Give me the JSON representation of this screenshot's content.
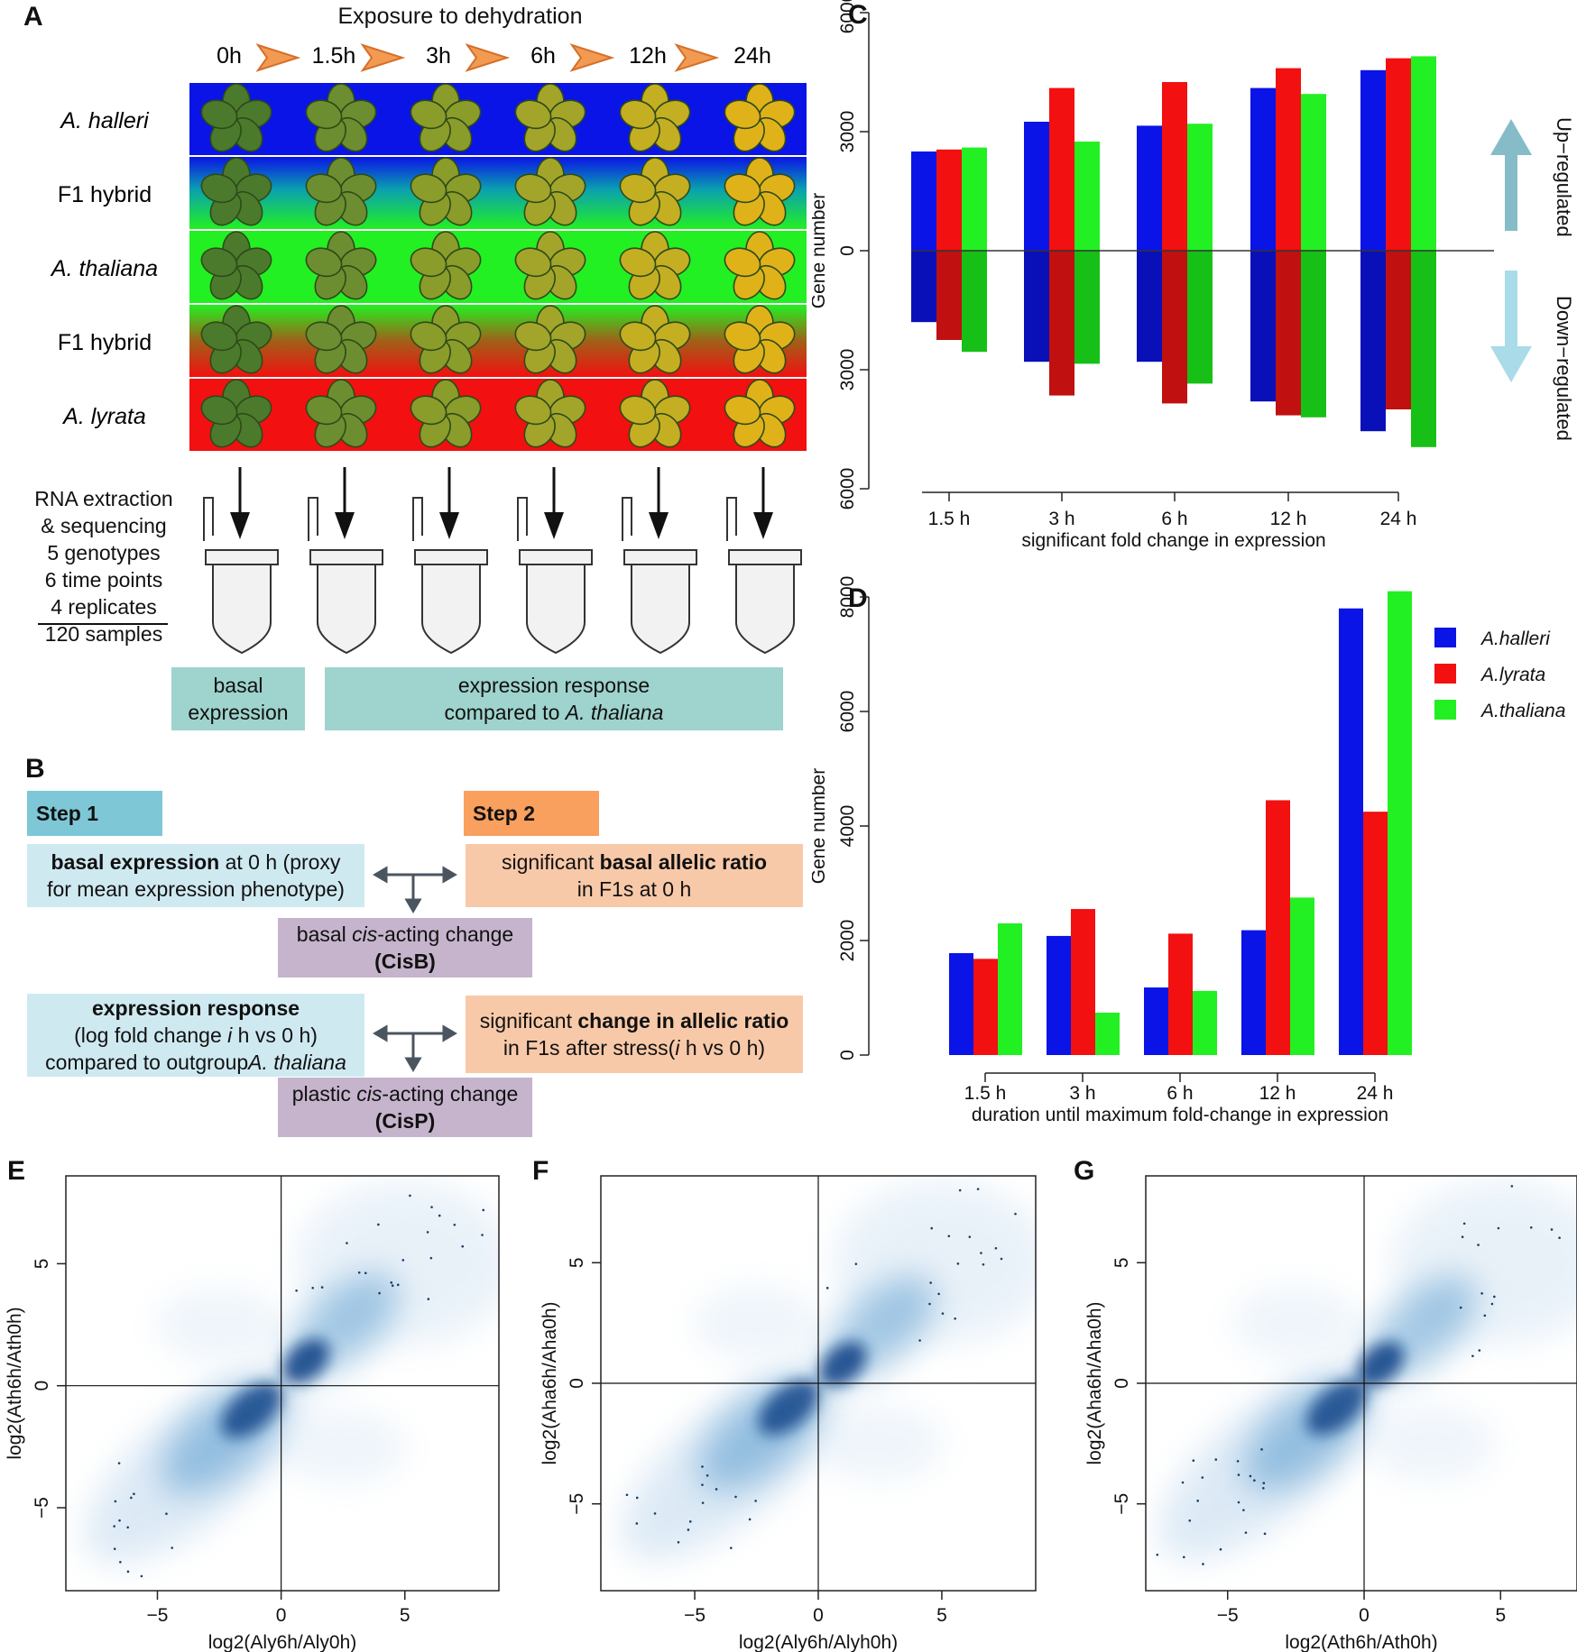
{
  "panels": {
    "A": {
      "label": "A",
      "title": "Exposure to dehydration",
      "times": [
        "0h",
        "1.5h",
        "3h",
        "6h",
        "12h",
        "24h"
      ],
      "rows": [
        "A. halleri",
        "F1 hybrid",
        "A. thaliana",
        "F1 hybrid",
        "A. lyrata"
      ],
      "rows_italic": [
        true,
        false,
        true,
        false,
        true
      ],
      "row_colors": {
        "halleri": "#0a14e6",
        "thaliana": "#22f022",
        "lyrata": "#f21010"
      },
      "leaf_colors": [
        "#4b7a2c",
        "#6d8e30",
        "#8a9c2a",
        "#a3a52a",
        "#c4ae22",
        "#e0b21a"
      ],
      "sample_text": [
        "RNA extraction",
        "& sequencing",
        "5 genotypes",
        "6 time points",
        "4 replicates",
        "120 samples"
      ],
      "basal_box": [
        "basal",
        "expression"
      ],
      "response_box_line1": "expression response",
      "response_box_line2_prefix": "compared to ",
      "response_box_line2_italic": "A. thaliana"
    },
    "B": {
      "label": "B",
      "step1": "Step 1",
      "step2": "Step 2",
      "basal_expr_bold": "basal expression",
      "basal_expr_rest": " at 0 h (proxy",
      "basal_expr_line2": "for mean expression phenotype)",
      "sig_basal_prefix": "significant ",
      "sig_basal_bold": "basal allelic ratio",
      "sig_basal_line2": "in F1s at 0 h",
      "cisb_prefix": "basal ",
      "cisb_italic": "cis",
      "cisb_suffix": "-acting change",
      "cisb_code": "(CisB)",
      "resp_bold": "expression response",
      "resp_line2_a": "(log fold change ",
      "resp_line2_i": "i",
      "resp_line2_b": " h vs 0 h)",
      "resp_line3_a": "compared to outgroup",
      "resp_line3_i": "A. thaliana",
      "sig_change_prefix": "significant ",
      "sig_change_bold": "change in allelic ratio",
      "sig_change_line2_a": "in F1s after stress(",
      "sig_change_line2_i": "i",
      "sig_change_line2_b": " h vs 0 h)",
      "cisp_prefix": "plastic ",
      "cisp_italic": "cis",
      "cisp_suffix": "-acting change",
      "cisp_code": "CisP"
    },
    "C": {
      "label": "C",
      "up_label": "Up−regulated",
      "down_label": "Down−regulated"
    },
    "D": {
      "label": "D"
    },
    "E": {
      "label": "E"
    },
    "F": {
      "label": "F"
    },
    "G": {
      "label": "G"
    }
  },
  "chart_data": [
    {
      "id": "C",
      "type": "bar",
      "categories": [
        "1.5 h",
        "3 h",
        "6 h",
        "12 h",
        "24 h"
      ],
      "series": [
        {
          "name": "A.halleri",
          "color": "#0a14e6",
          "up": [
            2500,
            3250,
            3150,
            4100,
            4550
          ],
          "down": [
            1800,
            2800,
            2800,
            3800,
            4550
          ]
        },
        {
          "name": "A.lyrata",
          "color": "#f21010",
          "up": [
            2550,
            4100,
            4250,
            4600,
            4850
          ],
          "down": [
            2250,
            3650,
            3850,
            4150,
            4000
          ]
        },
        {
          "name": "A.thaliana",
          "color": "#22f022",
          "up": [
            2600,
            2750,
            3200,
            3950,
            4900
          ],
          "down": [
            2550,
            2850,
            3350,
            4200,
            4950
          ]
        }
      ],
      "ylim": [
        -6000,
        6000
      ],
      "yticks": [
        6000,
        3000,
        0,
        3000,
        6000
      ],
      "xlabel": "significant fold change in expression",
      "ylabel": "Gene number"
    },
    {
      "id": "D",
      "type": "bar",
      "categories": [
        "1.5 h",
        "3 h",
        "6 h",
        "12 h",
        "24 h"
      ],
      "series": [
        {
          "name": "A.halleri",
          "color": "#0a14e6",
          "values": [
            1780,
            2080,
            1180,
            2180,
            7800
          ]
        },
        {
          "name": "A.lyrata",
          "color": "#f21010",
          "values": [
            1680,
            2550,
            2120,
            4450,
            4250
          ]
        },
        {
          "name": "A.thaliana",
          "color": "#22f022",
          "values": [
            2300,
            740,
            1120,
            2750,
            8100
          ]
        }
      ],
      "ylim": [
        0,
        8000
      ],
      "yticks": [
        0,
        2000,
        4000,
        6000,
        8000
      ],
      "xlabel": "duration until maximum fold-change in expression",
      "ylabel": "Gene number",
      "legend": "top-right"
    },
    {
      "id": "E",
      "type": "scatter",
      "xlabel": "log2(Aly6h/Aly0h)",
      "ylabel": "log2(Ath6h/Ath0h)",
      "xticks": [
        -5,
        0,
        5
      ],
      "yticks": [
        -5,
        0,
        5
      ],
      "xlim": [
        -8.7,
        8.8
      ],
      "ylim": [
        -8.4,
        8.6
      ],
      "density_centers": [
        {
          "x": 1.0,
          "y": 1.0
        },
        {
          "x": -1.2,
          "y": -1.0
        }
      ]
    },
    {
      "id": "F",
      "type": "scatter",
      "xlabel": "log2(Aly6h/Alyh0h)",
      "ylabel": "log2(Aha6h/Aha0h)",
      "xticks": [
        -5,
        0,
        5
      ],
      "yticks": [
        -5,
        0,
        5
      ],
      "xlim": [
        -8.8,
        8.8
      ],
      "ylim": [
        -8.6,
        8.6
      ],
      "density_centers": [
        {
          "x": 1.0,
          "y": 0.8
        },
        {
          "x": -1.2,
          "y": -1.0
        }
      ]
    },
    {
      "id": "G",
      "type": "scatter",
      "xlabel": "log2(Ath6h/Ath0h)",
      "ylabel": "log2(Aha6h/Aha0h)",
      "xticks": [
        -5,
        0,
        5
      ],
      "yticks": [
        -5,
        0,
        5
      ],
      "xlim": [
        -8.0,
        7.8
      ],
      "ylim": [
        -8.6,
        8.6
      ],
      "density_centers": [
        {
          "x": 0.6,
          "y": 0.8
        },
        {
          "x": -1.0,
          "y": -1.0
        }
      ]
    }
  ]
}
